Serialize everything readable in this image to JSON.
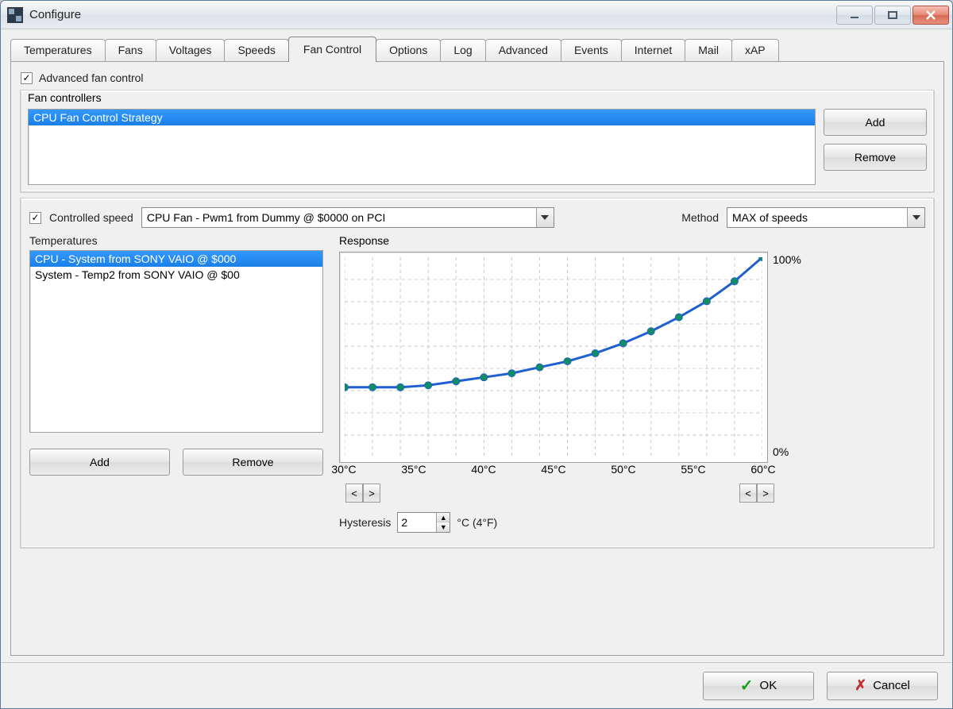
{
  "window": {
    "title": "Configure"
  },
  "tabs": [
    "Temperatures",
    "Fans",
    "Voltages",
    "Speeds",
    "Fan Control",
    "Options",
    "Log",
    "Advanced",
    "Events",
    "Internet",
    "Mail",
    "xAP"
  ],
  "active_tab_index": 4,
  "advanced_fan_control": {
    "label": "Advanced fan control",
    "checked": true
  },
  "fan_controllers": {
    "label": "Fan controllers",
    "items": [
      "CPU Fan Control Strategy"
    ],
    "selected_index": 0,
    "add_label": "Add",
    "remove_label": "Remove"
  },
  "controlled_speed": {
    "checked": true,
    "label": "Controlled speed",
    "value": "CPU Fan - Pwm1 from Dummy @ $0000 on PCI"
  },
  "method": {
    "label": "Method",
    "value": "MAX of speeds"
  },
  "temperatures": {
    "label": "Temperatures",
    "items": [
      "CPU - System from SONY VAIO @ $000",
      "System - Temp2 from SONY VAIO @ $00"
    ],
    "selected_index": 0,
    "add_label": "Add",
    "remove_label": "Remove"
  },
  "response": {
    "label": "Response",
    "type": "line",
    "x_values": [
      30,
      32,
      34,
      36,
      38,
      40,
      42,
      44,
      46,
      48,
      50,
      52,
      54,
      56,
      58,
      60
    ],
    "y_values": [
      35,
      35,
      35,
      36,
      38,
      40,
      42,
      45,
      48,
      52,
      57,
      63,
      70,
      78,
      88,
      100
    ],
    "ylim": [
      0,
      100
    ],
    "xlim": [
      30,
      60
    ],
    "xtick_labels": [
      "30°C",
      "35°C",
      "40°C",
      "45°C",
      "50°C",
      "55°C",
      "60°C"
    ],
    "xtick_positions": [
      30,
      35,
      40,
      45,
      50,
      55,
      60
    ],
    "y_top_label": "100%",
    "y_bottom_label": "0%",
    "line_color": "#1f5fcf",
    "line_width": 3,
    "marker_color": "#0f8f5f",
    "marker_radius": 4.5,
    "grid_color": "#c8c8c8",
    "background_color": "#ffffff",
    "y_gridlines": 9
  },
  "hysteresis": {
    "label": "Hysteresis",
    "value": "2",
    "suffix": "°C (4°F)"
  },
  "footer": {
    "ok": "OK",
    "cancel": "Cancel"
  }
}
